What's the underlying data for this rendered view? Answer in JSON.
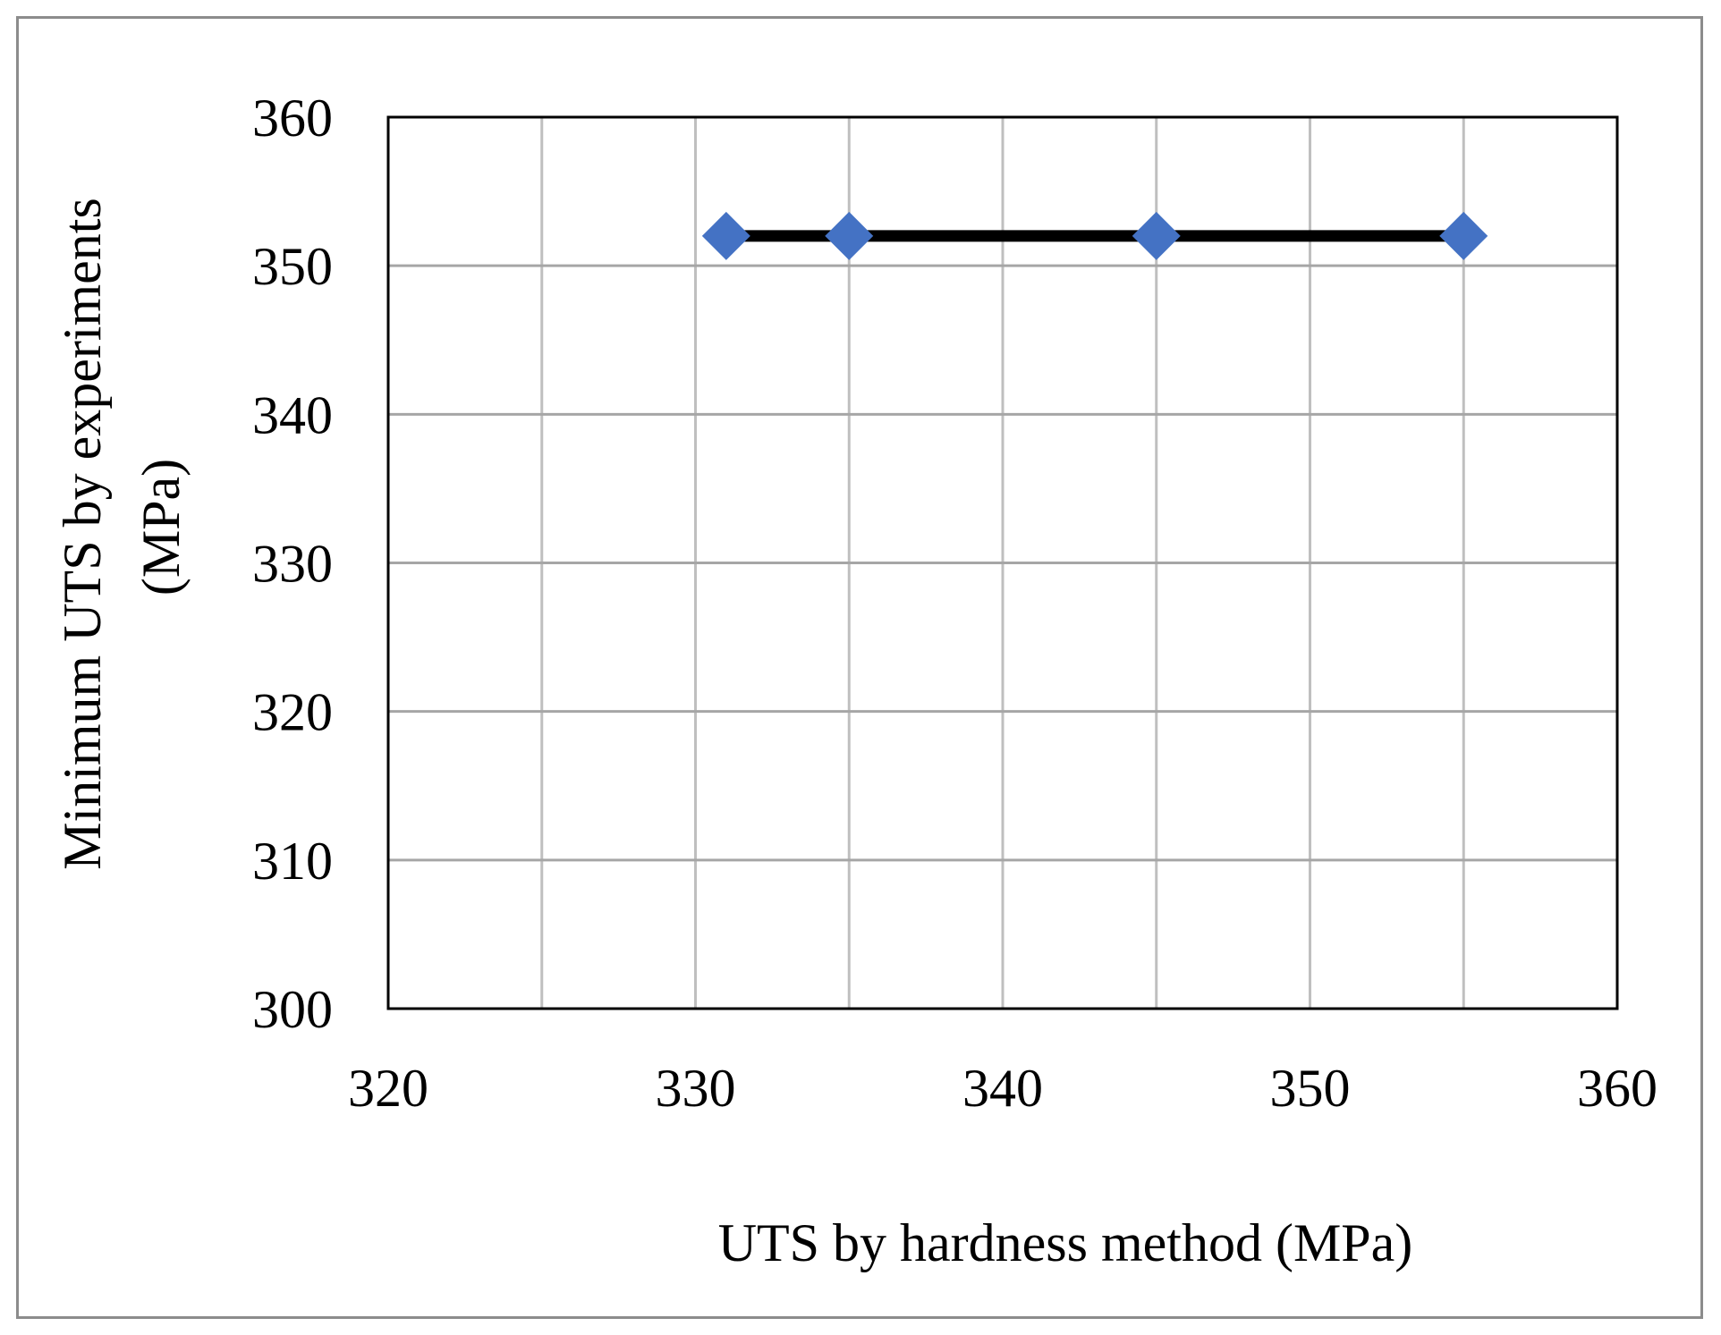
{
  "chart_data": {
    "type": "line",
    "title": "",
    "xlabel": "UTS by hardness method (MPa)",
    "ylabel_lines": [
      "Minimum UTS by experiments",
      "(MPa)"
    ],
    "xlim": [
      320,
      360
    ],
    "ylim": [
      300,
      360
    ],
    "x_ticks": [
      320,
      330,
      340,
      350,
      360
    ],
    "y_ticks": [
      300,
      310,
      320,
      330,
      340,
      350,
      360
    ],
    "x_minor_gridlines": [
      325,
      335,
      345,
      355
    ],
    "grid": true,
    "legend": "none",
    "series": [
      {
        "x": [
          331,
          335,
          345,
          355
        ],
        "y": [
          352,
          352,
          352,
          352
        ],
        "line_color": "#000000",
        "marker": "diamond",
        "marker_color": "#4472C4"
      }
    ]
  }
}
